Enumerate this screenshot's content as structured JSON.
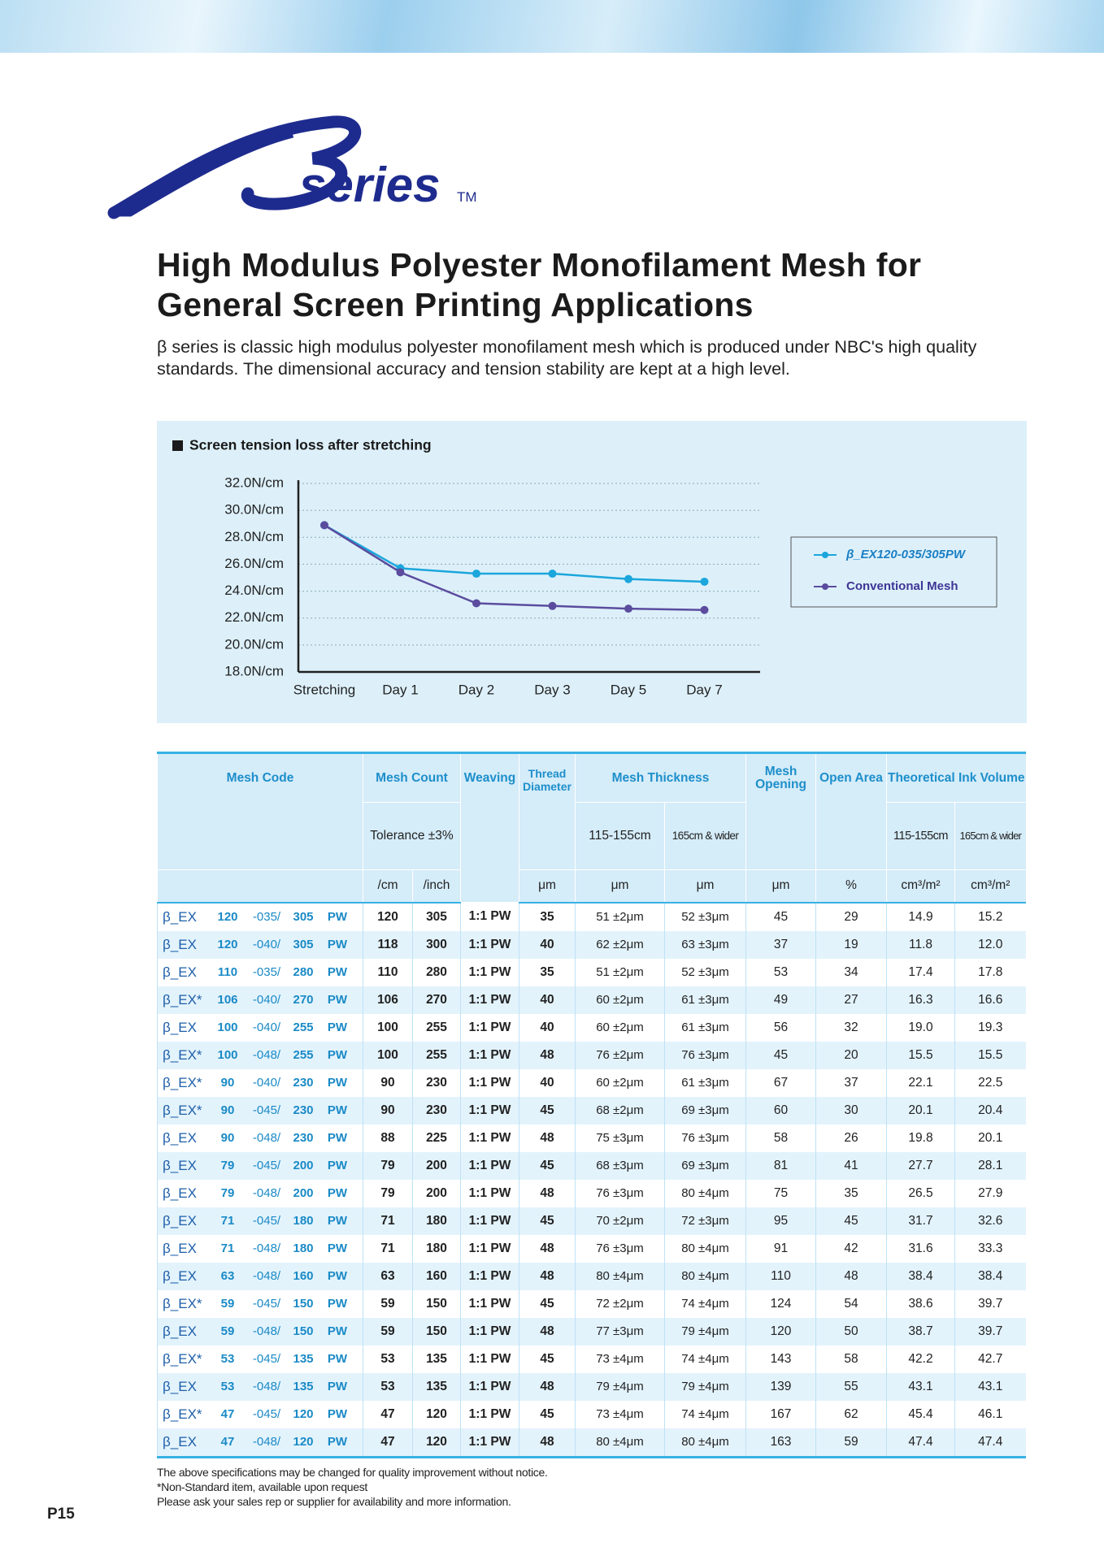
{
  "logo": {
    "text": "series",
    "tm": "TM"
  },
  "title": [
    "High Modulus Polyester Monofilament Mesh for",
    "General Screen Printing Applications"
  ],
  "description": [
    "β series is classic high modulus polyester monofilament mesh which is produced under NBC's high quality",
    "standards.  The dimensional accuracy and tension stability are kept at a high level."
  ],
  "chart_data": {
    "type": "line",
    "title": "Screen tension loss after stretching",
    "categories": [
      "Stretching",
      "Day 1",
      "Day 2",
      "Day 3",
      "Day 5",
      "Day 7"
    ],
    "series": [
      {
        "name": "β_EX120-035/305PW",
        "color": "#1ba6dc",
        "values": [
          28.9,
          25.7,
          25.3,
          25.3,
          24.9,
          24.7
        ]
      },
      {
        "name": "Conventional Mesh",
        "color": "#5b4c9e",
        "values": [
          28.9,
          25.4,
          23.1,
          22.9,
          22.7,
          22.6
        ]
      }
    ],
    "ylim": [
      18,
      32
    ],
    "yticks": [
      {
        "value": 32,
        "label": "32.0N/cm"
      },
      {
        "value": 30,
        "label": "30.0N/cm"
      },
      {
        "value": 28,
        "label": "28.0N/cm"
      },
      {
        "value": 26,
        "label": "26.0N/cm"
      },
      {
        "value": 24,
        "label": "24.0N/cm"
      },
      {
        "value": 22,
        "label": "22.0N/cm"
      },
      {
        "value": 20,
        "label": "20.0N/cm"
      },
      {
        "value": 18,
        "label": "18.0N/cm"
      }
    ],
    "grid": true,
    "legend": "right"
  },
  "table": {
    "header": {
      "mesh_code": "Mesh Code",
      "mesh_count": "Mesh Count",
      "weaving": "Weaving",
      "thread": "Thread Diameter",
      "thickness": "Mesh Thickness",
      "opening": "Mesh Opening",
      "open_area": "Open Area",
      "ink": "Theoretical Ink Volume",
      "tolerance": "Tolerance ±3%",
      "thick_a": "115-155cm",
      "thick_b": "165cm & wider",
      "ink_a": "115-155cm",
      "ink_b": "165cm & wider",
      "units": [
        "/cm",
        "/inch",
        "μm",
        "μm",
        "μm",
        "μm",
        "%",
        "cm³/m²",
        "cm³/m²"
      ]
    },
    "rows": [
      {
        "code": [
          "β_EX",
          "120",
          "-035/",
          "305",
          "PW"
        ],
        "cells": [
          "120",
          "305",
          "1:1 PW",
          "35",
          "51 ±2μm",
          "52 ±3μm",
          "45",
          "29",
          "14.9",
          "15.2"
        ]
      },
      {
        "code": [
          "β_EX",
          "120",
          "-040/",
          "305",
          "PW"
        ],
        "cells": [
          "118",
          "300",
          "1:1 PW",
          "40",
          "62 ±2μm",
          "63 ±3μm",
          "37",
          "19",
          "11.8",
          "12.0"
        ]
      },
      {
        "code": [
          "β_EX",
          "110",
          "-035/",
          "280",
          "PW"
        ],
        "cells": [
          "110",
          "280",
          "1:1 PW",
          "35",
          "51 ±2μm",
          "52 ±3μm",
          "53",
          "34",
          "17.4",
          "17.8"
        ]
      },
      {
        "code": [
          "β_EX*",
          "106",
          "-040/",
          "270",
          "PW"
        ],
        "cells": [
          "106",
          "270",
          "1:1 PW",
          "40",
          "60 ±2μm",
          "61 ±3μm",
          "49",
          "27",
          "16.3",
          "16.6"
        ]
      },
      {
        "code": [
          "β_EX",
          "100",
          "-040/",
          "255",
          "PW"
        ],
        "cells": [
          "100",
          "255",
          "1:1 PW",
          "40",
          "60 ±2μm",
          "61 ±3μm",
          "56",
          "32",
          "19.0",
          "19.3"
        ]
      },
      {
        "code": [
          "β_EX*",
          "100",
          "-048/",
          "255",
          "PW"
        ],
        "cells": [
          "100",
          "255",
          "1:1 PW",
          "48",
          "76 ±2μm",
          "76 ±3μm",
          "45",
          "20",
          "15.5",
          "15.5"
        ]
      },
      {
        "code": [
          "β_EX*",
          "90",
          "-040/",
          "230",
          "PW"
        ],
        "cells": [
          "90",
          "230",
          "1:1 PW",
          "40",
          "60 ±2μm",
          "61 ±3μm",
          "67",
          "37",
          "22.1",
          "22.5"
        ]
      },
      {
        "code": [
          "β_EX*",
          "90",
          "-045/",
          "230",
          "PW"
        ],
        "cells": [
          "90",
          "230",
          "1:1 PW",
          "45",
          "68 ±2μm",
          "69 ±3μm",
          "60",
          "30",
          "20.1",
          "20.4"
        ]
      },
      {
        "code": [
          "β_EX",
          "90",
          "-048/",
          "230",
          "PW"
        ],
        "cells": [
          "88",
          "225",
          "1:1 PW",
          "48",
          "75 ±3μm",
          "76 ±3μm",
          "58",
          "26",
          "19.8",
          "20.1"
        ]
      },
      {
        "code": [
          "β_EX",
          "79",
          "-045/",
          "200",
          "PW"
        ],
        "cells": [
          "79",
          "200",
          "1:1 PW",
          "45",
          "68 ±3μm",
          "69 ±3μm",
          "81",
          "41",
          "27.7",
          "28.1"
        ]
      },
      {
        "code": [
          "β_EX",
          "79",
          "-048/",
          "200",
          "PW"
        ],
        "cells": [
          "79",
          "200",
          "1:1 PW",
          "48",
          "76 ±3μm",
          "80 ±4μm",
          "75",
          "35",
          "26.5",
          "27.9"
        ]
      },
      {
        "code": [
          "β_EX",
          "71",
          "-045/",
          "180",
          "PW"
        ],
        "cells": [
          "71",
          "180",
          "1:1 PW",
          "45",
          "70 ±2μm",
          "72 ±3μm",
          "95",
          "45",
          "31.7",
          "32.6"
        ]
      },
      {
        "code": [
          "β_EX",
          "71",
          "-048/",
          "180",
          "PW"
        ],
        "cells": [
          "71",
          "180",
          "1:1 PW",
          "48",
          "76 ±3μm",
          "80 ±4μm",
          "91",
          "42",
          "31.6",
          "33.3"
        ]
      },
      {
        "code": [
          "β_EX",
          "63",
          "-048/",
          "160",
          "PW"
        ],
        "cells": [
          "63",
          "160",
          "1:1 PW",
          "48",
          "80 ±4μm",
          "80 ±4μm",
          "110",
          "48",
          "38.4",
          "38.4"
        ]
      },
      {
        "code": [
          "β_EX*",
          "59",
          "-045/",
          "150",
          "PW"
        ],
        "cells": [
          "59",
          "150",
          "1:1 PW",
          "45",
          "72 ±2μm",
          "74 ±4μm",
          "124",
          "54",
          "38.6",
          "39.7"
        ]
      },
      {
        "code": [
          "β_EX",
          "59",
          "-048/",
          "150",
          "PW"
        ],
        "cells": [
          "59",
          "150",
          "1:1 PW",
          "48",
          "77 ±3μm",
          "79 ±4μm",
          "120",
          "50",
          "38.7",
          "39.7"
        ]
      },
      {
        "code": [
          "β_EX*",
          "53",
          "-045/",
          "135",
          "PW"
        ],
        "cells": [
          "53",
          "135",
          "1:1 PW",
          "45",
          "73 ±4μm",
          "74 ±4μm",
          "143",
          "58",
          "42.2",
          "42.7"
        ]
      },
      {
        "code": [
          "β_EX",
          "53",
          "-048/",
          "135",
          "PW"
        ],
        "cells": [
          "53",
          "135",
          "1:1 PW",
          "48",
          "79 ±4μm",
          "79 ±4μm",
          "139",
          "55",
          "43.1",
          "43.1"
        ]
      },
      {
        "code": [
          "β_EX*",
          "47",
          "-045/",
          "120",
          "PW"
        ],
        "cells": [
          "47",
          "120",
          "1:1 PW",
          "45",
          "73 ±4μm",
          "74 ±4μm",
          "167",
          "62",
          "45.4",
          "46.1"
        ]
      },
      {
        "code": [
          "β_EX",
          "47",
          "-048/",
          "120",
          "PW"
        ],
        "cells": [
          "47",
          "120",
          "1:1 PW",
          "48",
          "80 ±4μm",
          "80 ±4μm",
          "163",
          "59",
          "47.4",
          "47.4"
        ]
      }
    ]
  },
  "footnotes": [
    "The above specifications may be changed for quality improvement without notice.",
    "*Non-Standard item, available upon request",
    "Please ask your sales rep or supplier for availability and more information."
  ],
  "page_number": "P15"
}
